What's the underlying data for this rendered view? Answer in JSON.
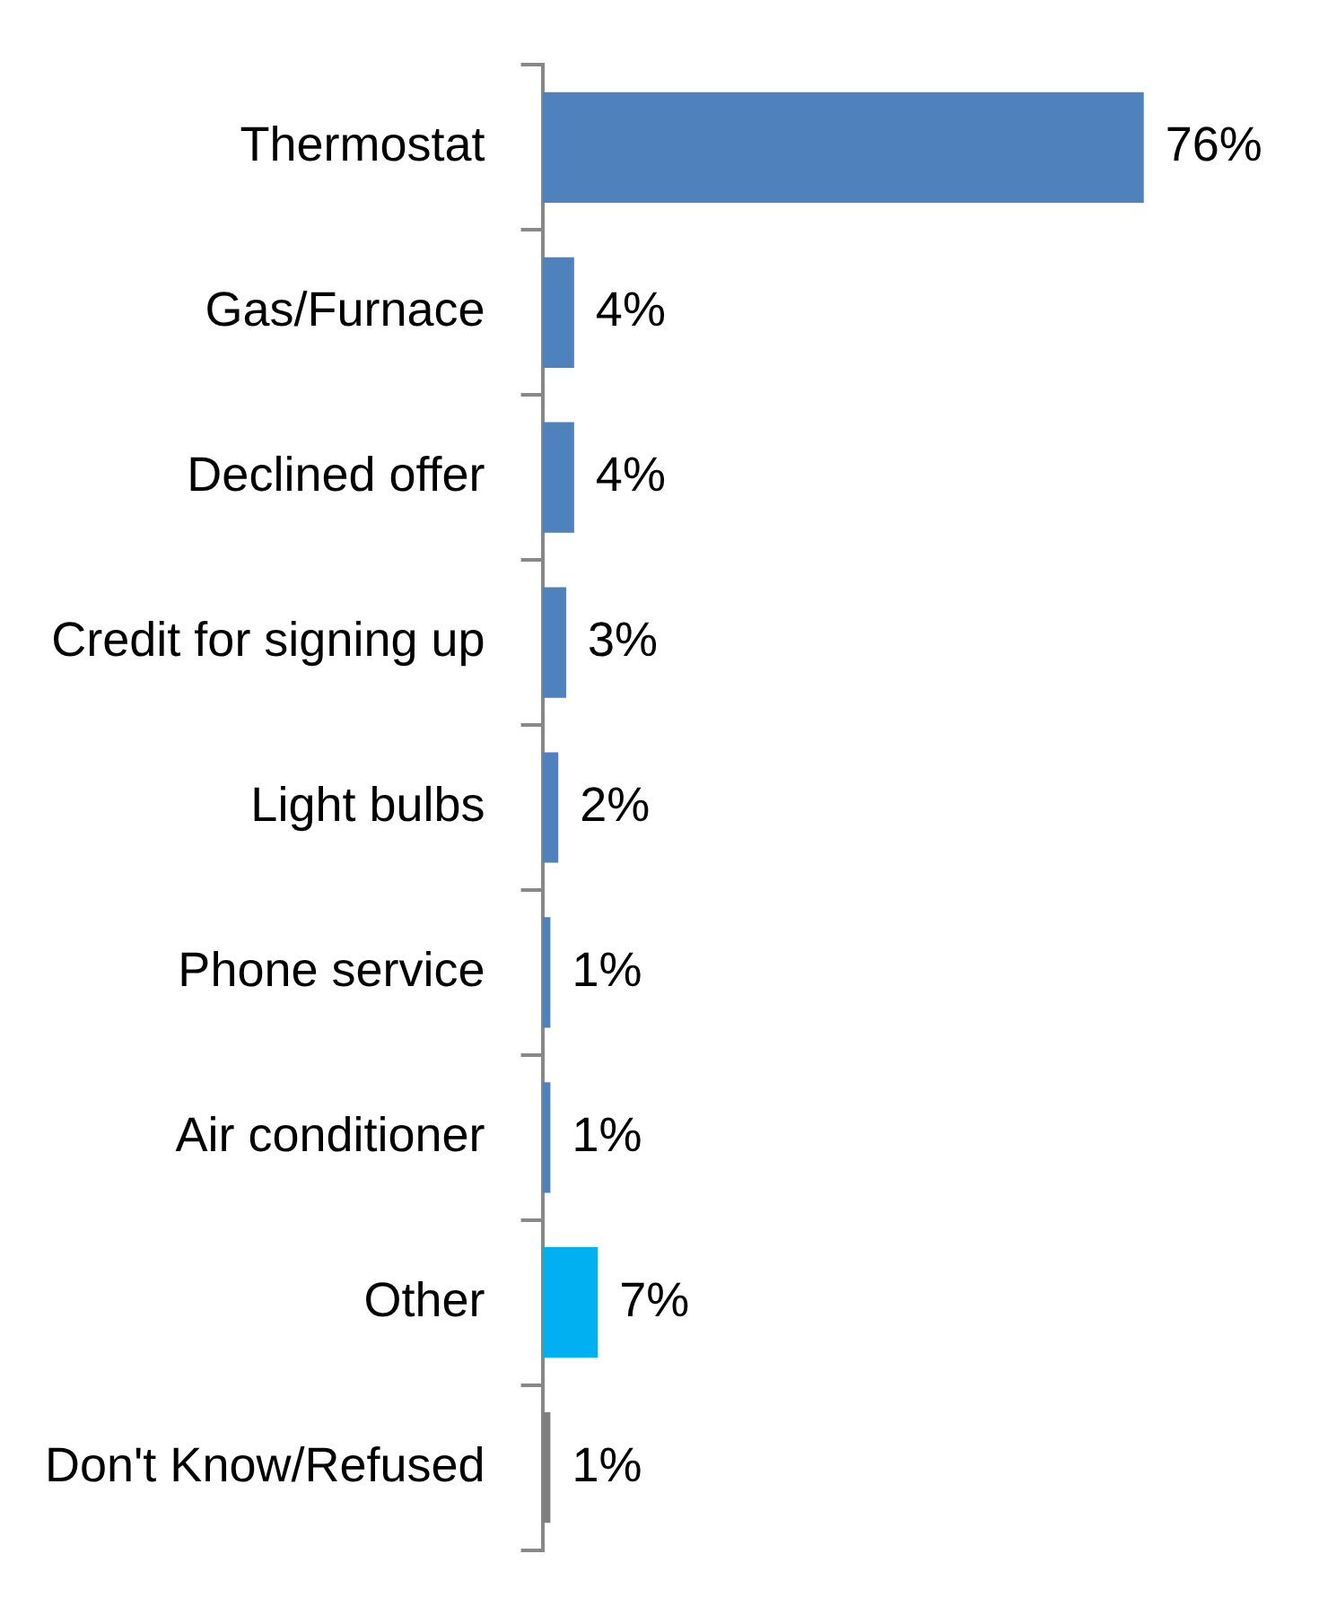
{
  "chart_data": {
    "type": "bar",
    "orientation": "horizontal",
    "tick_labels": "y",
    "value_labels": [
      "76%",
      "4%",
      "4%",
      "3%",
      "2%",
      "1%",
      "1%",
      "7%",
      "1%"
    ],
    "categories": [
      "Thermostat",
      "Gas/Furnace",
      "Declined offer",
      "Credit for signing up",
      "Light bulbs",
      "Phone service",
      "Air conditioner",
      "Other",
      "Don't Know/Refused"
    ],
    "values": [
      76,
      4,
      4,
      3,
      2,
      1,
      1,
      7,
      1
    ],
    "colors": [
      "#4f81bd",
      "#4f81bd",
      "#4f81bd",
      "#4f81bd",
      "#4f81bd",
      "#4f81bd",
      "#4f81bd",
      "#00b0f0",
      "#7f7f7f"
    ]
  }
}
